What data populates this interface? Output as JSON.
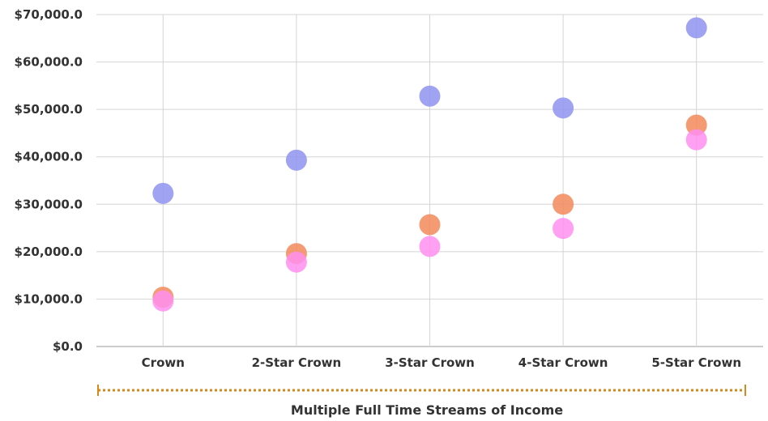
{
  "chart_data": {
    "type": "scatter",
    "categories": [
      "Crown",
      "2-Star Crown",
      "3-Star Crown",
      "4-Star Crown",
      "5-Star Crown"
    ],
    "y_tick_labels": [
      "$0.0",
      "$10,000.0",
      "$20,000.0",
      "$30,000.0",
      "$40,000.0",
      "$50,000.0",
      "$60,000.0",
      "$70,000.0"
    ],
    "ylim": [
      0,
      70000
    ],
    "grid": true,
    "xlabel": "Multiple Full Time  Streams of Income",
    "ylabel": "",
    "title": "",
    "series": [
      {
        "color": "#8f93f0",
        "values": [
          32300,
          39300,
          52800,
          50300,
          67200
        ]
      },
      {
        "color": "#f28a5c",
        "values": [
          10400,
          19600,
          25700,
          30000,
          46700
        ]
      },
      {
        "color": "#ff8ff0",
        "values": [
          9600,
          17800,
          21100,
          24900,
          43600
        ]
      }
    ],
    "bracket_color": "#d4891c"
  }
}
